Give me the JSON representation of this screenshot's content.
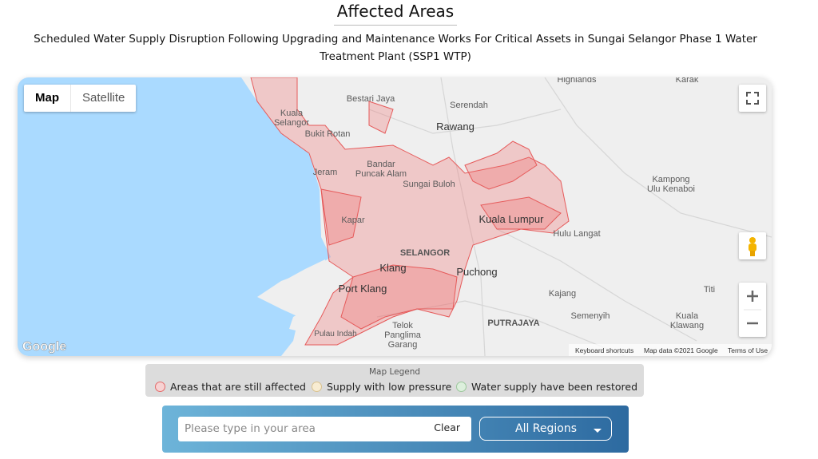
{
  "header": {
    "title": "Affected Areas",
    "subtitle": "Scheduled Water Supply Disruption Following Upgrading and Maintenance Works For Critical Assets in Sungai Selangor Phase 1 Water Treatment Plant (SSP1 WTP)"
  },
  "map": {
    "map_types": [
      "Map",
      "Satellite"
    ],
    "places": {
      "highlands": "Highlands",
      "karak": "Karak",
      "bestari_jaya": "Bestari Jaya",
      "serendah": "Serendah",
      "kuala_selangor": [
        "Kuala",
        "Selangor"
      ],
      "bukit_rotan": "Bukit Rotan",
      "rawang": "Rawang",
      "bandar_puncak_alam": [
        "Bandar",
        "Puncak Alam"
      ],
      "jeram": "Jeram",
      "sungai_buloh": "Sungai Buloh",
      "kapar": "Kapar",
      "kuala_lumpur": "Kuala Lumpur",
      "hulu_langat": "Hulu Langat",
      "kampong_ulu_kenaboi": [
        "Kampong",
        "Ulu Kenaboi"
      ],
      "selangor": "SELANGOR",
      "puchong": "Puchong",
      "port_klang": "Port Klang",
      "klang": "Klang",
      "kajang": "Kajang",
      "semenyih": "Semenyih",
      "putrajaya": "PUTRAJAYA",
      "telok_panglima_garang": [
        "Telok",
        "Panglima",
        "Garang"
      ],
      "pulau_indah": "Pulau Indah",
      "titi": "Titi",
      "kuala_klawang": [
        "Kuala",
        "Klawang"
      ]
    },
    "footer": {
      "logo": "Google",
      "shortcuts": "Keyboard shortcuts",
      "map_data": "Map data ©2021 Google",
      "terms": "Terms of Use"
    }
  },
  "legend": {
    "title": "Map Legend",
    "items": [
      "Areas that are still affected",
      "Supply with low pressure",
      "Water supply have been restored"
    ]
  },
  "search": {
    "placeholder": "Please type in your area",
    "clear": "Clear",
    "region": "All Regions"
  }
}
